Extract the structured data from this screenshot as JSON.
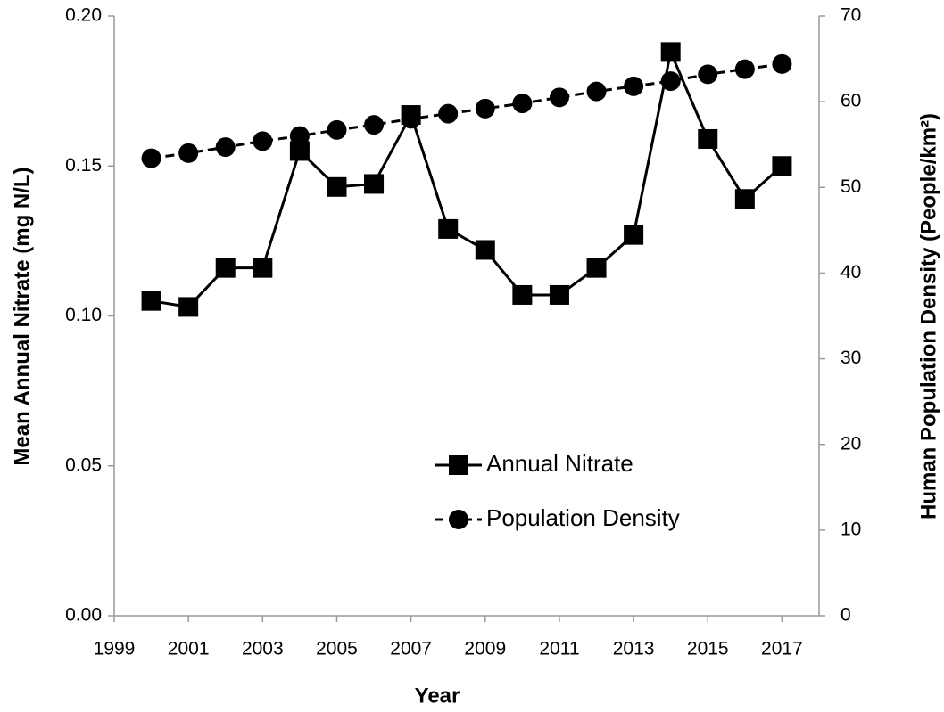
{
  "chart_data": {
    "type": "line",
    "x_label": "Year",
    "y_label": "Mean Annual Nitrate (mg N/L)",
    "y2_label": "Human Population Density (People/km²)",
    "x": [
      2000,
      2001,
      2002,
      2003,
      2004,
      2005,
      2006,
      2007,
      2008,
      2009,
      2010,
      2011,
      2012,
      2013,
      2014,
      2015,
      2016,
      2017
    ],
    "series": [
      {
        "name": "Annual Nitrate",
        "color": "#000000",
        "marker": "square",
        "dashed": false,
        "values": [
          0.105,
          0.103,
          0.116,
          0.116,
          0.155,
          0.143,
          0.144,
          0.167,
          0.129,
          0.122,
          0.107,
          0.107,
          0.116,
          0.127,
          0.188,
          0.159,
          0.139,
          0.15
        ]
      },
      {
        "name": "Population Density",
        "color": "#000000",
        "marker": "circle",
        "dashed": true,
        "axis": "y2",
        "values": [
          53.4,
          54.0,
          54.7,
          55.4,
          56.0,
          56.7,
          57.3,
          58.0,
          58.6,
          59.2,
          59.8,
          60.5,
          61.2,
          61.8,
          62.4,
          63.2,
          63.8,
          64.4
        ]
      }
    ],
    "xlim": [
      1999,
      2018
    ],
    "xticks": [
      1999,
      2001,
      2003,
      2005,
      2007,
      2009,
      2011,
      2013,
      2015,
      2017
    ],
    "ylim": [
      0,
      0.2
    ],
    "yticks": [
      {
        "value": 0,
        "label": "0.00"
      },
      {
        "value": 0.05,
        "label": "0.05"
      },
      {
        "value": 0.1,
        "label": "0.10"
      },
      {
        "value": 0.15,
        "label": "0.15"
      },
      {
        "value": 0.2,
        "label": "0.20"
      }
    ],
    "y2lim": [
      0,
      70
    ],
    "y2ticks": [
      0,
      10,
      20,
      30,
      40,
      50,
      60,
      70
    ],
    "grid": false
  }
}
